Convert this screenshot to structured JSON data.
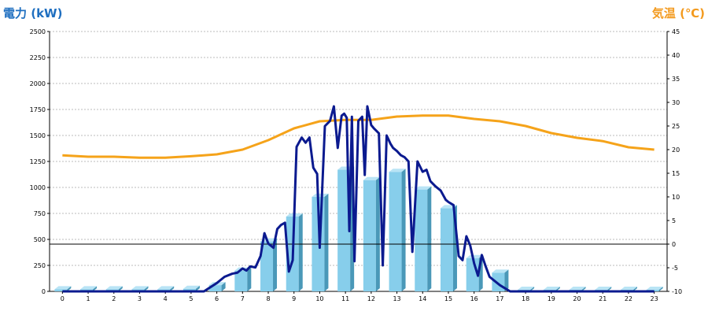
{
  "chart_data": {
    "type": "bar+line",
    "title_left": "電力 (kW)",
    "title_right": "気温 (℃)",
    "categories": [
      "0",
      "1",
      "2",
      "3",
      "4",
      "5",
      "6",
      "7",
      "8",
      "9",
      "10",
      "11",
      "12",
      "13",
      "14",
      "15",
      "16",
      "17",
      "18",
      "19",
      "20",
      "21",
      "22",
      "23"
    ],
    "y_left": {
      "min": 0,
      "max": 2500,
      "ticks": [
        0,
        250,
        500,
        750,
        1000,
        1250,
        1500,
        1750,
        2000,
        2250,
        2500
      ]
    },
    "y_right": {
      "min": -10,
      "max": 45,
      "ticks": [
        -10,
        -5,
        0,
        5,
        10,
        15,
        20,
        25,
        30,
        35,
        40,
        45
      ]
    },
    "series": [
      {
        "type": "bar",
        "unit": "kW",
        "values": [
          20,
          20,
          20,
          20,
          20,
          25,
          60,
          200,
          480,
          720,
          910,
          1170,
          1070,
          1150,
          980,
          800,
          320,
          180,
          15,
          15,
          15,
          15,
          15,
          15
        ]
      },
      {
        "type": "line",
        "axis": "left",
        "color": "#0b1a8f",
        "x": [
          0,
          1,
          2,
          3,
          4,
          5,
          5.5,
          6,
          6.3,
          6.6,
          6.8,
          7,
          7.15,
          7.3,
          7.5,
          7.7,
          7.85,
          8,
          8.2,
          8.35,
          8.5,
          8.65,
          8.8,
          8.95,
          9.1,
          9.3,
          9.45,
          9.6,
          9.75,
          9.9,
          10,
          10.2,
          10.4,
          10.55,
          10.7,
          10.85,
          10.95,
          11.05,
          11.15,
          11.25,
          11.35,
          11.5,
          11.65,
          11.75,
          11.85,
          12,
          12.1,
          12.3,
          12.45,
          12.6,
          12.75,
          12.85,
          13,
          13.15,
          13.3,
          13.45,
          13.6,
          13.8,
          14,
          14.15,
          14.3,
          14.5,
          14.7,
          14.9,
          15,
          15.2,
          15.4,
          15.55,
          15.7,
          15.85,
          16,
          16.15,
          16.3,
          16.45,
          16.6,
          16.8,
          17,
          17.2,
          17.4,
          17.6,
          18,
          19,
          20,
          21,
          22,
          23
        ],
        "values": [
          0,
          0,
          0,
          0,
          0,
          0,
          0,
          80,
          140,
          170,
          180,
          220,
          200,
          240,
          230,
          340,
          560,
          460,
          420,
          600,
          640,
          660,
          190,
          300,
          1390,
          1480,
          1430,
          1480,
          1190,
          1130,
          420,
          1590,
          1640,
          1780,
          1380,
          1690,
          1710,
          1670,
          580,
          1680,
          290,
          1640,
          1680,
          1120,
          1780,
          1600,
          1570,
          1520,
          250,
          1500,
          1420,
          1380,
          1350,
          1310,
          1290,
          1250,
          380,
          1250,
          1150,
          1170,
          1060,
          1010,
          970,
          880,
          860,
          830,
          340,
          300,
          530,
          440,
          270,
          150,
          350,
          240,
          140,
          100,
          60,
          30,
          0,
          0,
          0,
          0,
          0,
          0,
          0,
          0
        ]
      },
      {
        "type": "line",
        "axis": "right",
        "color": "#f5a31a",
        "x": [
          0,
          1,
          2,
          3,
          4,
          5,
          6,
          7,
          8,
          9,
          10,
          11,
          12,
          13,
          14,
          15,
          16,
          17,
          18,
          19,
          20,
          21,
          22,
          23
        ],
        "values": [
          18.8,
          18.5,
          18.5,
          18.3,
          18.3,
          18.6,
          19,
          20,
          22,
          24.5,
          26,
          26.3,
          26.3,
          27,
          27.2,
          27.2,
          26.5,
          26,
          25,
          23.5,
          22.5,
          21.8,
          20.5,
          20
        ]
      }
    ],
    "grid": true,
    "reference_line": 0
  }
}
